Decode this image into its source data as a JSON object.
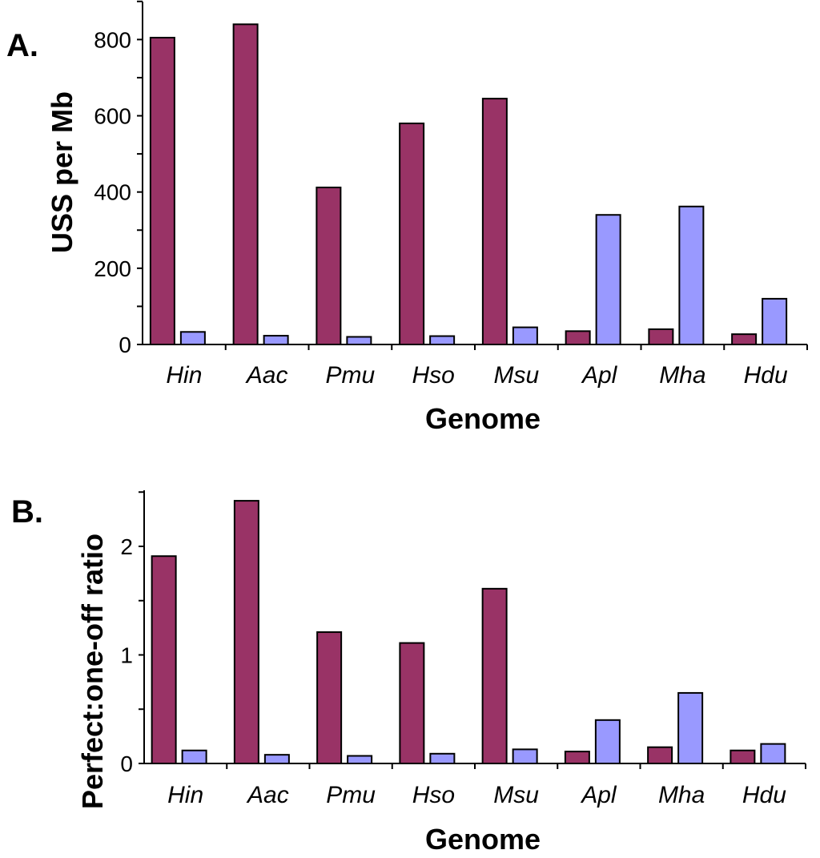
{
  "figure": {
    "panels": [
      "A.",
      "B."
    ]
  },
  "chart_data": [
    {
      "type": "bar",
      "panel": "A.",
      "categories": [
        "Hin",
        "Aac",
        "Pmu",
        "Hso",
        "Msu",
        "Apl",
        "Mha",
        "Hdu"
      ],
      "series": [
        {
          "values": [
            805,
            840,
            412,
            580,
            645,
            35,
            40,
            27
          ]
        },
        {
          "values": [
            33,
            23,
            20,
            22,
            45,
            340,
            362,
            120
          ]
        }
      ],
      "colors": [
        "#993366",
        "#9999ff"
      ],
      "xlabel": "Genome",
      "ylabel": "USS per Mb",
      "ylim": [
        0,
        900
      ],
      "yticks": [
        0,
        200,
        400,
        600,
        800
      ],
      "grid": false,
      "legend": "none"
    },
    {
      "type": "bar",
      "panel": "B.",
      "categories": [
        "Hin",
        "Aac",
        "Pmu",
        "Hso",
        "Msu",
        "Apl",
        "Mha",
        "Hdu"
      ],
      "series": [
        {
          "values": [
            1.91,
            2.42,
            1.21,
            1.11,
            1.61,
            0.11,
            0.15,
            0.12
          ]
        },
        {
          "values": [
            0.12,
            0.08,
            0.07,
            0.09,
            0.13,
            0.4,
            0.65,
            0.18
          ]
        }
      ],
      "colors": [
        "#993366",
        "#9999ff"
      ],
      "xlabel": "Genome",
      "ylabel": "Perfect:one-off ratio",
      "ylim": [
        0,
        2.5
      ],
      "yticks": [
        0,
        1,
        2
      ],
      "grid": false,
      "legend": "none"
    }
  ]
}
